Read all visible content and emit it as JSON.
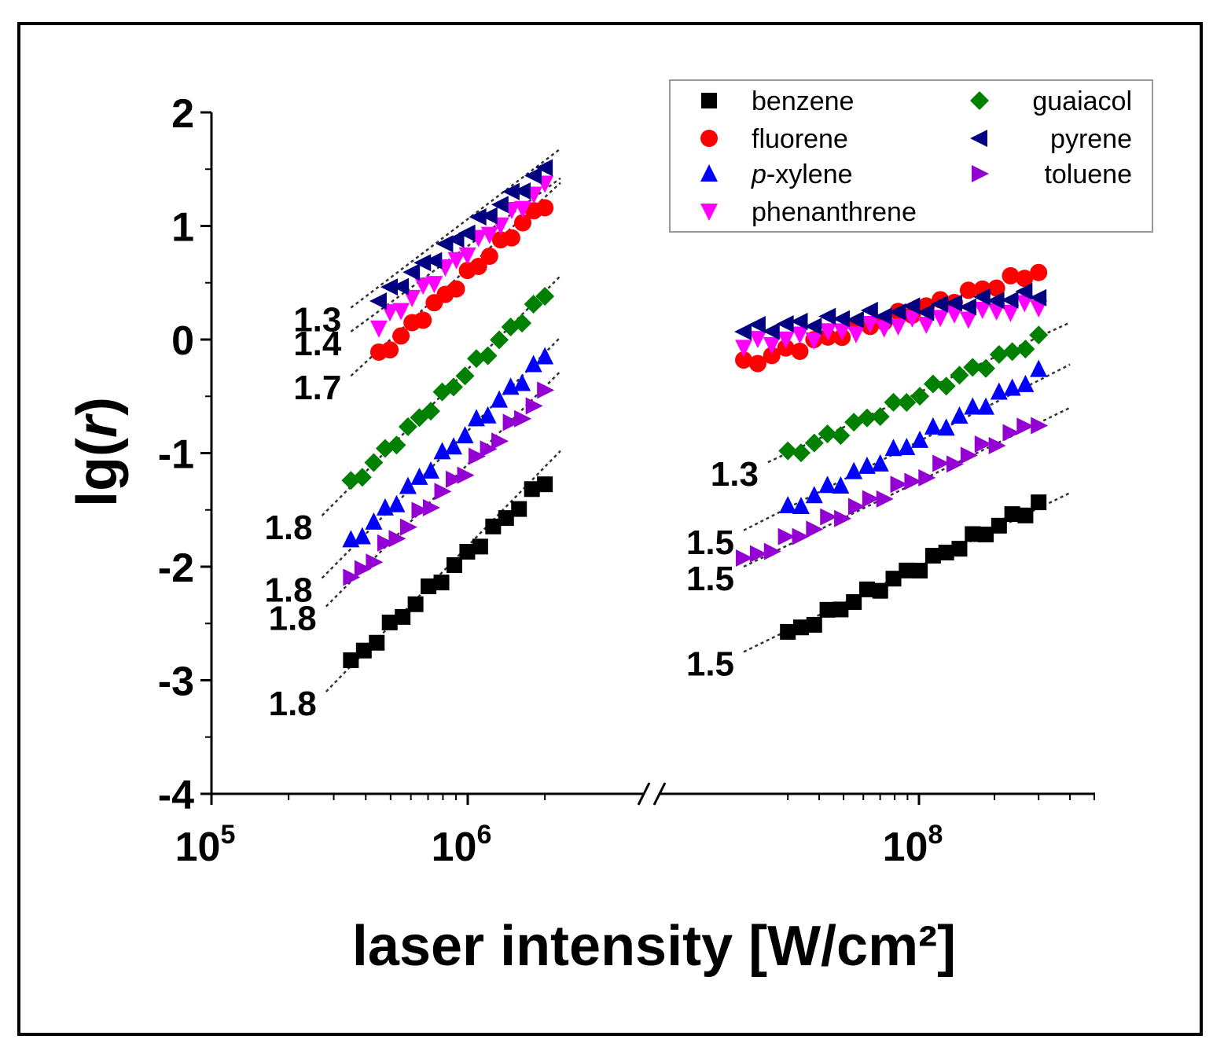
{
  "chart_data": {
    "type": "scatter",
    "title": "",
    "xlabel": "laser intensity [W/cm²]",
    "ylabel_prefix": "lg(",
    "ylabel_var": "r",
    "ylabel_suffix": ")",
    "x_scale": "log, broken axis",
    "ylim": [
      -4,
      2
    ],
    "y_ticks": [
      {
        "value": 2,
        "label": "2"
      },
      {
        "value": 1,
        "label": "1"
      },
      {
        "value": 0,
        "label": "0"
      },
      {
        "value": -1,
        "label": "-1"
      },
      {
        "value": -2,
        "label": "-2"
      },
      {
        "value": -3,
        "label": "-3"
      },
      {
        "value": -4,
        "label": "-4"
      }
    ],
    "x_ticks": [
      {
        "value": 100000,
        "base": "10",
        "exp": "5"
      },
      {
        "value": 1000000,
        "base": "10",
        "exp": "6"
      },
      {
        "value": 100000000,
        "base": "10",
        "exp": "8"
      }
    ],
    "legend": [
      {
        "name": "benzene",
        "color": "#000000",
        "marker": "square"
      },
      {
        "name": "fluorene",
        "color": "#ff0000",
        "marker": "circle"
      },
      {
        "name": "p-xylene",
        "name_italic": "p",
        "name_rest": "-xylene",
        "color": "#0000ff",
        "marker": "triangle-up"
      },
      {
        "name": "phenanthrene",
        "color": "#ff00ff",
        "marker": "triangle-down"
      },
      {
        "name": "guaiacol",
        "color": "#008000",
        "marker": "diamond"
      },
      {
        "name": "pyrene",
        "color": "#000080",
        "marker": "triangle-left"
      },
      {
        "name": "toluene",
        "color": "#9400d3",
        "marker": "triangle-right"
      }
    ],
    "series": [
      {
        "name": "benzene",
        "color": "#000000",
        "marker": "square",
        "segments": [
          {
            "range": "low",
            "x_start": 350000,
            "x_end": 2000000,
            "y_start": -2.85,
            "y_end": -1.25,
            "n": 16
          },
          {
            "range": "high",
            "x_start": 30000000,
            "x_end": 300000000,
            "y_start": -2.6,
            "y_end": -1.45,
            "n": 20
          }
        ]
      },
      {
        "name": "fluorene",
        "color": "#ff0000",
        "marker": "circle",
        "segments": [
          {
            "range": "low",
            "x_start": 450000,
            "x_end": 2000000,
            "y_start": -0.15,
            "y_end": 1.2,
            "n": 16
          },
          {
            "range": "high",
            "x_start": 20000000,
            "x_end": 300000000,
            "y_start": -0.22,
            "y_end": 0.6,
            "n": 22
          }
        ]
      },
      {
        "name": "p-xylene",
        "color": "#0000ff",
        "marker": "triangle-up",
        "segments": [
          {
            "range": "low",
            "x_start": 350000,
            "x_end": 2000000,
            "y_start": -1.8,
            "y_end": -0.15,
            "n": 18
          },
          {
            "range": "high",
            "x_start": 30000000,
            "x_end": 300000000,
            "y_start": -1.5,
            "y_end": -0.3,
            "n": 20
          }
        ]
      },
      {
        "name": "phenanthrene",
        "color": "#ff00ff",
        "marker": "triangle-down",
        "segments": [
          {
            "range": "low",
            "x_start": 450000,
            "x_end": 2000000,
            "y_start": 0.12,
            "y_end": 1.35,
            "n": 16
          },
          {
            "range": "high",
            "x_start": 20000000,
            "x_end": 300000000,
            "y_start": -0.05,
            "y_end": 0.3,
            "n": 22
          }
        ]
      },
      {
        "name": "guaiacol",
        "color": "#008000",
        "marker": "diamond",
        "segments": [
          {
            "range": "low",
            "x_start": 350000,
            "x_end": 2000000,
            "y_start": -1.28,
            "y_end": 0.38,
            "n": 18
          },
          {
            "range": "high",
            "x_start": 30000000,
            "x_end": 300000000,
            "y_start": -1.02,
            "y_end": 0.0,
            "n": 20
          }
        ]
      },
      {
        "name": "pyrene",
        "color": "#000080",
        "marker": "triangle-left",
        "segments": [
          {
            "range": "low",
            "x_start": 450000,
            "x_end": 2000000,
            "y_start": 0.35,
            "y_end": 1.5,
            "n": 16
          },
          {
            "range": "high",
            "x_start": 20000000,
            "x_end": 300000000,
            "y_start": 0.08,
            "y_end": 0.4,
            "n": 22
          }
        ]
      },
      {
        "name": "toluene",
        "color": "#9400d3",
        "marker": "triangle-right",
        "segments": [
          {
            "range": "low",
            "x_start": 350000,
            "x_end": 2000000,
            "y_start": -2.12,
            "y_end": -0.48,
            "n": 18
          },
          {
            "range": "high",
            "x_start": 20000000,
            "x_end": 300000000,
            "y_start": -1.95,
            "y_end": -0.72,
            "n": 22
          }
        ]
      }
    ],
    "fit_lines": [
      {
        "series": "pyrene",
        "range": "low",
        "x_start": 350000,
        "x_end": 2300000,
        "y_start": 0.28,
        "y_end": 1.68,
        "label": "1.3"
      },
      {
        "series": "phenanthrene",
        "range": "low",
        "x_start": 350000,
        "x_end": 2300000,
        "y_start": 0.07,
        "y_end": 1.42,
        "label": "1.4"
      },
      {
        "series": "fluorene",
        "range": "low",
        "x_start": 350000,
        "x_end": 2300000,
        "y_start": -0.32,
        "y_end": 1.38,
        "label": "1.7"
      },
      {
        "series": "guaiacol",
        "range": "low",
        "x_start": 270000,
        "x_end": 2300000,
        "y_start": -1.55,
        "y_end": 0.56,
        "label": "1.8"
      },
      {
        "series": "p-xylene",
        "range": "low",
        "x_start": 270000,
        "x_end": 2300000,
        "y_start": -2.1,
        "y_end": 0.02,
        "label": "1.8"
      },
      {
        "series": "toluene",
        "range": "low",
        "x_start": 280000,
        "x_end": 2300000,
        "y_start": -2.35,
        "y_end": -0.28,
        "label": "1.8"
      },
      {
        "series": "benzene",
        "range": "low",
        "x_start": 280000,
        "x_end": 2300000,
        "y_start": -3.1,
        "y_end": -0.98,
        "label": "1.8"
      },
      {
        "series": "guaiacol",
        "range": "high",
        "x_start": 25000000,
        "x_end": 400000000,
        "y_start": -1.08,
        "y_end": 0.15,
        "label": "1.3"
      },
      {
        "series": "p-xylene",
        "range": "high",
        "x_start": 20000000,
        "x_end": 400000000,
        "y_start": -1.68,
        "y_end": -0.22,
        "label": "1.5"
      },
      {
        "series": "toluene",
        "range": "high",
        "x_start": 20000000,
        "x_end": 400000000,
        "y_start": -2.0,
        "y_end": -0.6,
        "label": "1.5"
      },
      {
        "series": "benzene",
        "range": "high",
        "x_start": 20000000,
        "x_end": 400000000,
        "y_start": -2.75,
        "y_end": -1.35,
        "label": "1.5"
      }
    ]
  }
}
